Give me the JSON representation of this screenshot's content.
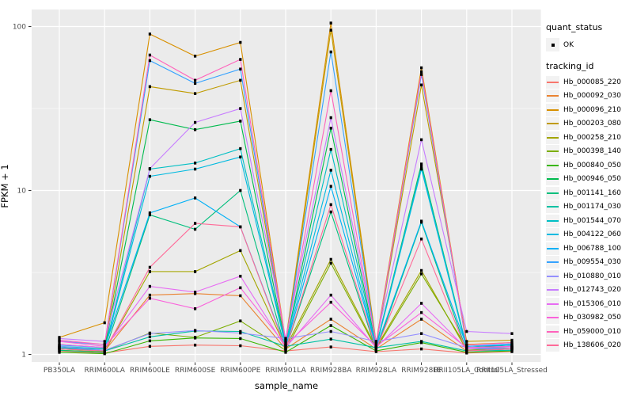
{
  "colors": {
    "panel_bg": "#EBEBEB",
    "grid": "#FFFFFF",
    "tick_mark": "#333333",
    "tick_text": "#4D4D4D",
    "marker": "#000000",
    "legend_key_bg": "#F2F2F2"
  },
  "axes": {
    "x_title": "sample_name",
    "y_title": "FPKM + 1"
  },
  "legend": {
    "quant_status_title": "quant_status",
    "quant_status_items": [
      "OK"
    ],
    "tracking_id_title": "tracking_id"
  },
  "chart_data": {
    "type": "line",
    "title": "",
    "xlabel": "sample_name",
    "ylabel": "FPKM + 1",
    "y_scale": "log10",
    "ylim": [
      0.9,
      124
    ],
    "y_ticks": [
      {
        "value": 1,
        "label": "1"
      },
      {
        "value": 10,
        "label": "10"
      },
      {
        "value": 100,
        "label": "100"
      }
    ],
    "y_minor_ticks": [
      3.1623,
      31.623
    ],
    "grid": true,
    "legend_position": "right",
    "marker_legend": {
      "title": "quant_status",
      "items": [
        "OK"
      ]
    },
    "series_legend_title": "tracking_id",
    "categories": [
      "PB350LA",
      "RRIM600LA",
      "RRIM600LE",
      "RRIM600SE",
      "RRIM600PE",
      "RRIM901LA",
      "RRIM928BA",
      "RRIM928LA",
      "RRIM928LE",
      "RRII105LA_Control",
      "RRII105LA_Stressed"
    ],
    "series": [
      {
        "name": "Hb_000085_220",
        "color": "#F8766D",
        "values": [
          1.05,
          1.02,
          1.12,
          1.14,
          1.13,
          1.05,
          1.11,
          1.04,
          1.08,
          1.02,
          1.04
        ]
      },
      {
        "name": "Hb_000092_030",
        "color": "#EA8331",
        "values": [
          1.1,
          1.05,
          2.3,
          2.35,
          2.28,
          1.08,
          1.64,
          1.08,
          1.64,
          1.05,
          1.08
        ]
      },
      {
        "name": "Hb_000096_210",
        "color": "#D89000",
        "values": [
          1.27,
          1.56,
          90,
          66,
          80,
          1.2,
          105,
          1.18,
          56,
          1.15,
          1.18
        ]
      },
      {
        "name": "Hb_000203_080",
        "color": "#C09B00",
        "values": [
          1.15,
          1.1,
          43,
          39,
          47,
          1.15,
          95,
          1.14,
          44,
          1.2,
          1.22
        ]
      },
      {
        "name": "Hb_000258_210",
        "color": "#A3A500",
        "values": [
          1.06,
          1.04,
          3.2,
          3.2,
          4.3,
          1.1,
          3.8,
          1.1,
          3.25,
          1.06,
          1.1
        ]
      },
      {
        "name": "Hb_000398_140",
        "color": "#7CAE00",
        "values": [
          1.1,
          1.05,
          1.35,
          1.27,
          1.6,
          1.06,
          3.6,
          1.08,
          3.1,
          1.1,
          1.12
        ]
      },
      {
        "name": "Hb_000840_050",
        "color": "#39B600",
        "values": [
          1.03,
          1.01,
          1.21,
          1.26,
          1.25,
          1.03,
          1.5,
          1.05,
          1.18,
          1.03,
          1.05
        ]
      },
      {
        "name": "Hb_000946_050",
        "color": "#00BB4E",
        "values": [
          1.1,
          1.08,
          27,
          23.5,
          26.5,
          1.14,
          24,
          1.12,
          14.5,
          1.1,
          1.14
        ]
      },
      {
        "name": "Hb_001141_160",
        "color": "#00BF7D",
        "values": [
          1.06,
          1.03,
          7.1,
          5.8,
          10.0,
          1.08,
          7.4,
          1.06,
          6.4,
          1.05,
          1.08
        ]
      },
      {
        "name": "Hb_001174_030",
        "color": "#00C1A3",
        "values": [
          1.08,
          1.05,
          1.28,
          1.39,
          1.38,
          1.12,
          1.24,
          1.1,
          1.2,
          1.05,
          1.06
        ]
      },
      {
        "name": "Hb_001544_070",
        "color": "#00BFC4",
        "values": [
          1.12,
          1.08,
          13.5,
          14.7,
          18.0,
          1.15,
          17.8,
          1.12,
          14.0,
          1.1,
          1.1
        ]
      },
      {
        "name": "Hb_004122_060",
        "color": "#00BAE0",
        "values": [
          1.1,
          1.06,
          12.2,
          13.5,
          16.0,
          1.12,
          13.3,
          1.1,
          13.5,
          1.08,
          1.08
        ]
      },
      {
        "name": "Hb_006788_100",
        "color": "#00B0F6",
        "values": [
          1.14,
          1.1,
          7.3,
          9.0,
          6.0,
          1.1,
          10.6,
          1.1,
          6.5,
          1.12,
          1.14
        ]
      },
      {
        "name": "Hb_009554_030",
        "color": "#35A2FF",
        "values": [
          1.2,
          1.15,
          62,
          45,
          55,
          1.18,
          70,
          1.15,
          51,
          1.12,
          1.16
        ]
      },
      {
        "name": "Hb_010880_010",
        "color": "#9590FF",
        "values": [
          1.12,
          1.06,
          1.34,
          1.4,
          1.35,
          1.25,
          1.38,
          1.2,
          1.34,
          1.1,
          1.12
        ]
      },
      {
        "name": "Hb_012743_020",
        "color": "#C77CFF",
        "values": [
          1.25,
          1.2,
          13.6,
          26,
          31.6,
          1.25,
          27.8,
          1.2,
          20.4,
          1.38,
          1.34
        ]
      },
      {
        "name": "Hb_015306_010",
        "color": "#E76BF3",
        "values": [
          1.15,
          1.1,
          2.6,
          2.4,
          3.0,
          1.1,
          2.3,
          1.1,
          2.05,
          1.08,
          1.1
        ]
      },
      {
        "name": "Hb_030982_050",
        "color": "#FA62DB",
        "values": [
          1.2,
          1.12,
          2.2,
          1.9,
          2.55,
          1.14,
          2.08,
          1.12,
          1.8,
          1.1,
          1.12
        ]
      },
      {
        "name": "Hb_059000_010",
        "color": "#FF62BC",
        "values": [
          1.22,
          1.15,
          67,
          47,
          63,
          1.2,
          40.6,
          1.16,
          53,
          1.14,
          1.18
        ]
      },
      {
        "name": "Hb_138606_020",
        "color": "#FF6A98",
        "values": [
          1.08,
          1.05,
          3.4,
          6.3,
          6.0,
          1.08,
          8.2,
          1.08,
          5.06,
          1.05,
          1.08
        ]
      }
    ]
  }
}
